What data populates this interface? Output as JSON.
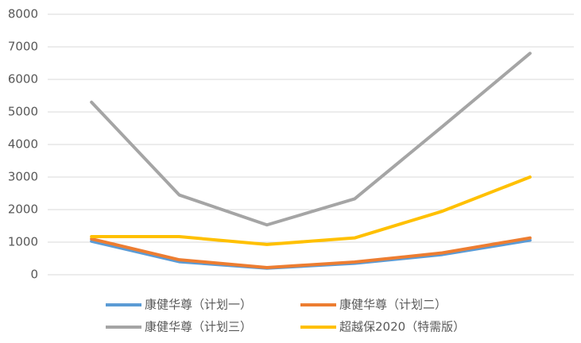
{
  "chart_data": {
    "type": "line",
    "categories": [
      null,
      null,
      null,
      null,
      null,
      null
    ],
    "series": [
      {
        "name": "康健华尊（计划一）",
        "color": "#5b9bd5",
        "values": [
          1030,
          400,
          200,
          350,
          620,
          1060
        ]
      },
      {
        "name": "康健华尊（计划二）",
        "color": "#ed7d31",
        "values": [
          1100,
          460,
          220,
          390,
          670,
          1130
        ]
      },
      {
        "name": "康健华尊（计划三）",
        "color": "#a5a5a5",
        "values": [
          5300,
          2450,
          1530,
          2330,
          4550,
          6800
        ]
      },
      {
        "name": "超越保2020（特需版）",
        "color": "#ffc000",
        "values": [
          1170,
          1170,
          930,
          1130,
          1950,
          3000
        ]
      }
    ],
    "ylim": [
      0,
      8000
    ],
    "yticks": [
      0,
      1000,
      2000,
      3000,
      4000,
      5000,
      6000,
      7000,
      8000
    ],
    "grid": true,
    "legend": "bottom"
  }
}
